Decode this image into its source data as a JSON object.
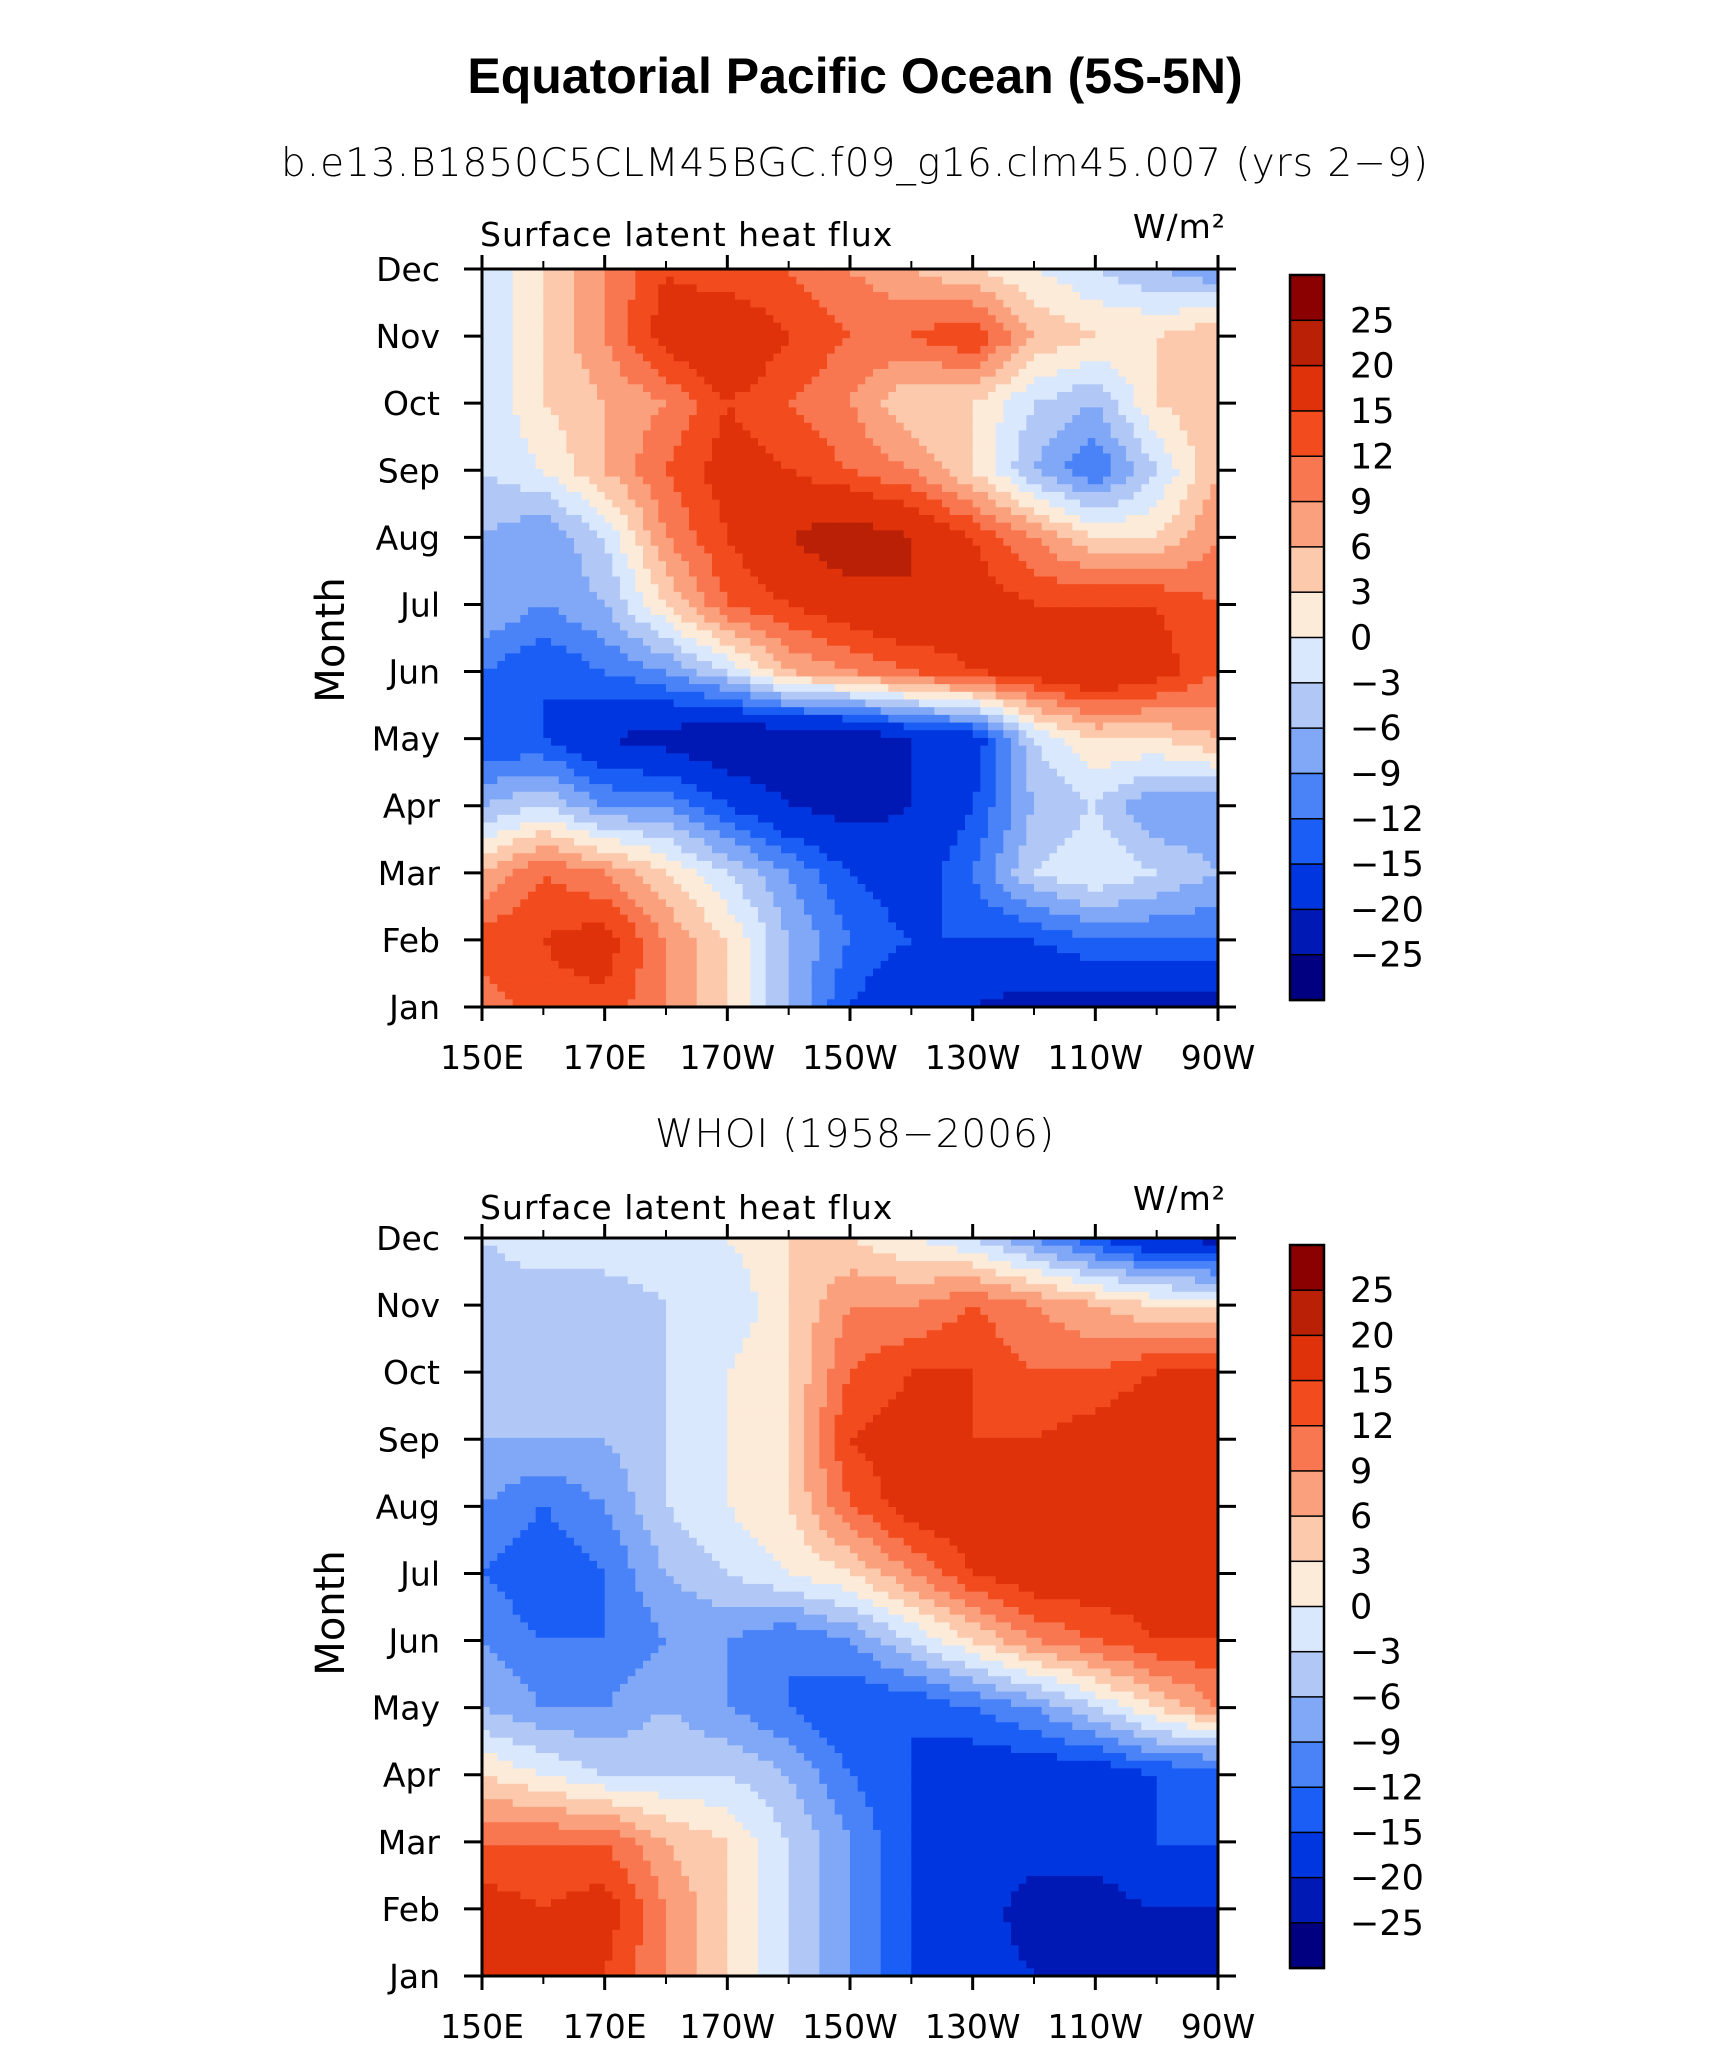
{
  "title": "Equatorial Pacific Ocean (5S-5N)",
  "chart_data": [
    {
      "type": "heatmap",
      "title": "b.e13.B1850C5CLM45BGC.f09_g16.clm45.007 (yrs 2−9)",
      "variable": "Surface latent heat flux",
      "units": "W/m²",
      "ylabel": "Month",
      "x_ticks": [
        "150E",
        "170E",
        "170W",
        "150W",
        "130W",
        "110W",
        "90W"
      ],
      "y_ticks": [
        "Jan",
        "Feb",
        "Mar",
        "Apr",
        "May",
        "Jun",
        "Jul",
        "Aug",
        "Sep",
        "Oct",
        "Nov",
        "Dec"
      ],
      "colorbar_levels": [
        "25",
        "20",
        "15",
        "12",
        "9",
        "6",
        "3",
        "0",
        "−3",
        "−6",
        "−9",
        "−12",
        "−15",
        "−20",
        "−25"
      ],
      "grid": [
        [
          10,
          14,
          14,
          9,
          3,
          -6,
          -15,
          -20,
          -20,
          -22,
          -22,
          -22,
          -22
        ],
        [
          14,
          15,
          17,
          9,
          3,
          -6,
          -12,
          -15,
          -15,
          -15,
          -12,
          -12,
          -12
        ],
        [
          6,
          12,
          9,
          3,
          -3,
          -9,
          -15,
          -18,
          -12,
          -3,
          0,
          -3,
          -6
        ],
        [
          -6,
          -3,
          -9,
          -9,
          -15,
          -20,
          -22,
          -20,
          -15,
          -6,
          -3,
          -9,
          -9
        ],
        [
          -15,
          -15,
          -20,
          -22,
          -25,
          -25,
          -25,
          -20,
          -18,
          -3,
          3,
          3,
          6
        ],
        [
          -12,
          -15,
          -12,
          -9,
          -3,
          6,
          9,
          12,
          15,
          17,
          20,
          17,
          12
        ],
        [
          -6,
          -9,
          -6,
          3,
          12,
          15,
          18,
          20,
          17,
          15,
          15,
          15,
          12
        ],
        [
          -6,
          -9,
          -3,
          9,
          15,
          20,
          23,
          20,
          15,
          9,
          3,
          3,
          9
        ],
        [
          -3,
          0,
          6,
          12,
          17,
          15,
          12,
          9,
          3,
          -6,
          -12,
          -3,
          6
        ],
        [
          -3,
          3,
          6,
          9,
          15,
          12,
          9,
          3,
          3,
          -3,
          -6,
          3,
          6
        ],
        [
          -3,
          3,
          9,
          17,
          20,
          15,
          12,
          12,
          15,
          6,
          3,
          3,
          6
        ],
        [
          -3,
          3,
          9,
          15,
          12,
          12,
          9,
          6,
          3,
          0,
          -3,
          -6,
          -9
        ]
      ],
      "grid_columns": [
        "150E",
        "160E",
        "170E",
        "180",
        "170W",
        "160W",
        "150W",
        "140W",
        "130W",
        "120W",
        "110W",
        "100W",
        "90W"
      ]
    },
    {
      "type": "heatmap",
      "title": "WHOI (1958−2006)",
      "variable": "Surface latent heat flux",
      "units": "W/m²",
      "ylabel": "Month",
      "x_ticks": [
        "150E",
        "170E",
        "170W",
        "150W",
        "130W",
        "110W",
        "90W"
      ],
      "y_ticks": [
        "Jan",
        "Feb",
        "Mar",
        "Apr",
        "May",
        "Jun",
        "Jul",
        "Aug",
        "Sep",
        "Oct",
        "Nov",
        "Dec"
      ],
      "colorbar_levels": [
        "25",
        "20",
        "15",
        "12",
        "9",
        "6",
        "3",
        "0",
        "−3",
        "−6",
        "−9",
        "−12",
        "−15",
        "−20",
        "−25"
      ],
      "grid": [
        [
          15,
          15,
          15,
          9,
          3,
          -3,
          -9,
          -15,
          -18,
          -20,
          -20,
          -20,
          -22
        ],
        [
          17,
          15,
          17,
          9,
          3,
          -3,
          -9,
          -15,
          -18,
          -22,
          -22,
          -20,
          -20
        ],
        [
          12,
          12,
          12,
          6,
          3,
          -3,
          -9,
          -15,
          -15,
          -18,
          -18,
          -15,
          -15
        ],
        [
          3,
          0,
          -3,
          -3,
          -3,
          -6,
          -12,
          -15,
          -18,
          -18,
          -18,
          -15,
          -15
        ],
        [
          -6,
          -9,
          -9,
          -6,
          -9,
          -12,
          -15,
          -15,
          -12,
          -9,
          -3,
          3,
          9
        ],
        [
          -9,
          -12,
          -12,
          -9,
          -9,
          -12,
          -9,
          -3,
          3,
          9,
          12,
          15,
          15
        ],
        [
          -12,
          -15,
          -12,
          -6,
          -3,
          0,
          3,
          9,
          15,
          18,
          18,
          17,
          15
        ],
        [
          -9,
          -12,
          -9,
          -3,
          0,
          3,
          12,
          17,
          18,
          15,
          17,
          18,
          18
        ],
        [
          -6,
          -6,
          -6,
          -3,
          0,
          3,
          15,
          17,
          15,
          15,
          17,
          20,
          20
        ],
        [
          -6,
          -3,
          -6,
          -3,
          0,
          3,
          12,
          15,
          15,
          12,
          12,
          15,
          15
        ],
        [
          -6,
          -6,
          -6,
          -3,
          -3,
          3,
          9,
          9,
          12,
          9,
          6,
          3,
          3
        ],
        [
          -3,
          0,
          0,
          0,
          0,
          3,
          3,
          0,
          -3,
          -9,
          -15,
          -20,
          -22
        ]
      ],
      "grid_columns": [
        "150E",
        "160E",
        "170E",
        "180",
        "170W",
        "160W",
        "150W",
        "140W",
        "130W",
        "120W",
        "110W",
        "100W",
        "90W"
      ]
    }
  ],
  "colors": {
    "levels": [
      "#000080",
      "#0019b4",
      "#0036e0",
      "#1a5ef6",
      "#4a82f7",
      "#80a8f6",
      "#b1c8f7",
      "#dae8fd",
      "#fdebd9",
      "#fcc9ad",
      "#fba07c",
      "#f97750",
      "#f24b1e",
      "#e0320a",
      "#b92005",
      "#8b0000"
    ]
  }
}
